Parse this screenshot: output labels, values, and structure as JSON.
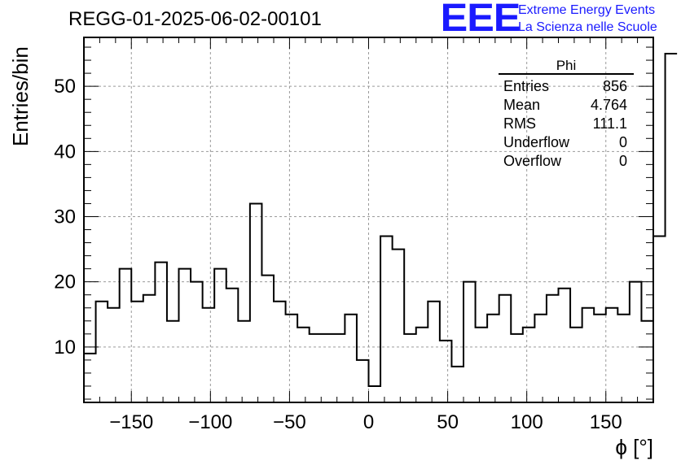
{
  "chart_data": {
    "type": "histogram",
    "title": "REGG-01-2025-06-02-00101",
    "xlabel": "ϕ [°]",
    "ylabel": "Entries/bin",
    "xlim": [
      -180,
      180
    ],
    "ylim": [
      1.5,
      57.5
    ],
    "bin_width": 7.5,
    "x_ticks": [
      -150,
      -100,
      -50,
      0,
      50,
      100,
      150
    ],
    "x_tick_labels": [
      "−150",
      "−100",
      "−50",
      "0",
      "50",
      "100",
      "150"
    ],
    "y_ticks": [
      10,
      20,
      30,
      40,
      50
    ],
    "y_tick_labels": [
      "10",
      "20",
      "30",
      "40",
      "50"
    ],
    "grid": true,
    "values": [
      9,
      17,
      16,
      22,
      17,
      18,
      23,
      14,
      22,
      20,
      16,
      22,
      19,
      14,
      32,
      21,
      17,
      15,
      13,
      12,
      12,
      12,
      15,
      8,
      4,
      27,
      25,
      12,
      13,
      17,
      11,
      7,
      20,
      13,
      15,
      18,
      12,
      13,
      15,
      18,
      19,
      13,
      16,
      15,
      16,
      15,
      20,
      14,
      27,
      55
    ],
    "stats": {
      "name": "Phi",
      "rows": [
        {
          "label": "Entries",
          "value": "856"
        },
        {
          "label": "Mean",
          "value": "4.764"
        },
        {
          "label": "RMS",
          "value": "111.1"
        },
        {
          "label": "Underflow",
          "value": "0"
        },
        {
          "label": "Overflow",
          "value": "0"
        }
      ]
    }
  },
  "logo": {
    "mark": "EEE",
    "line1": "Extreme Energy Events",
    "line2": "La Scienza nelle Scuole"
  }
}
